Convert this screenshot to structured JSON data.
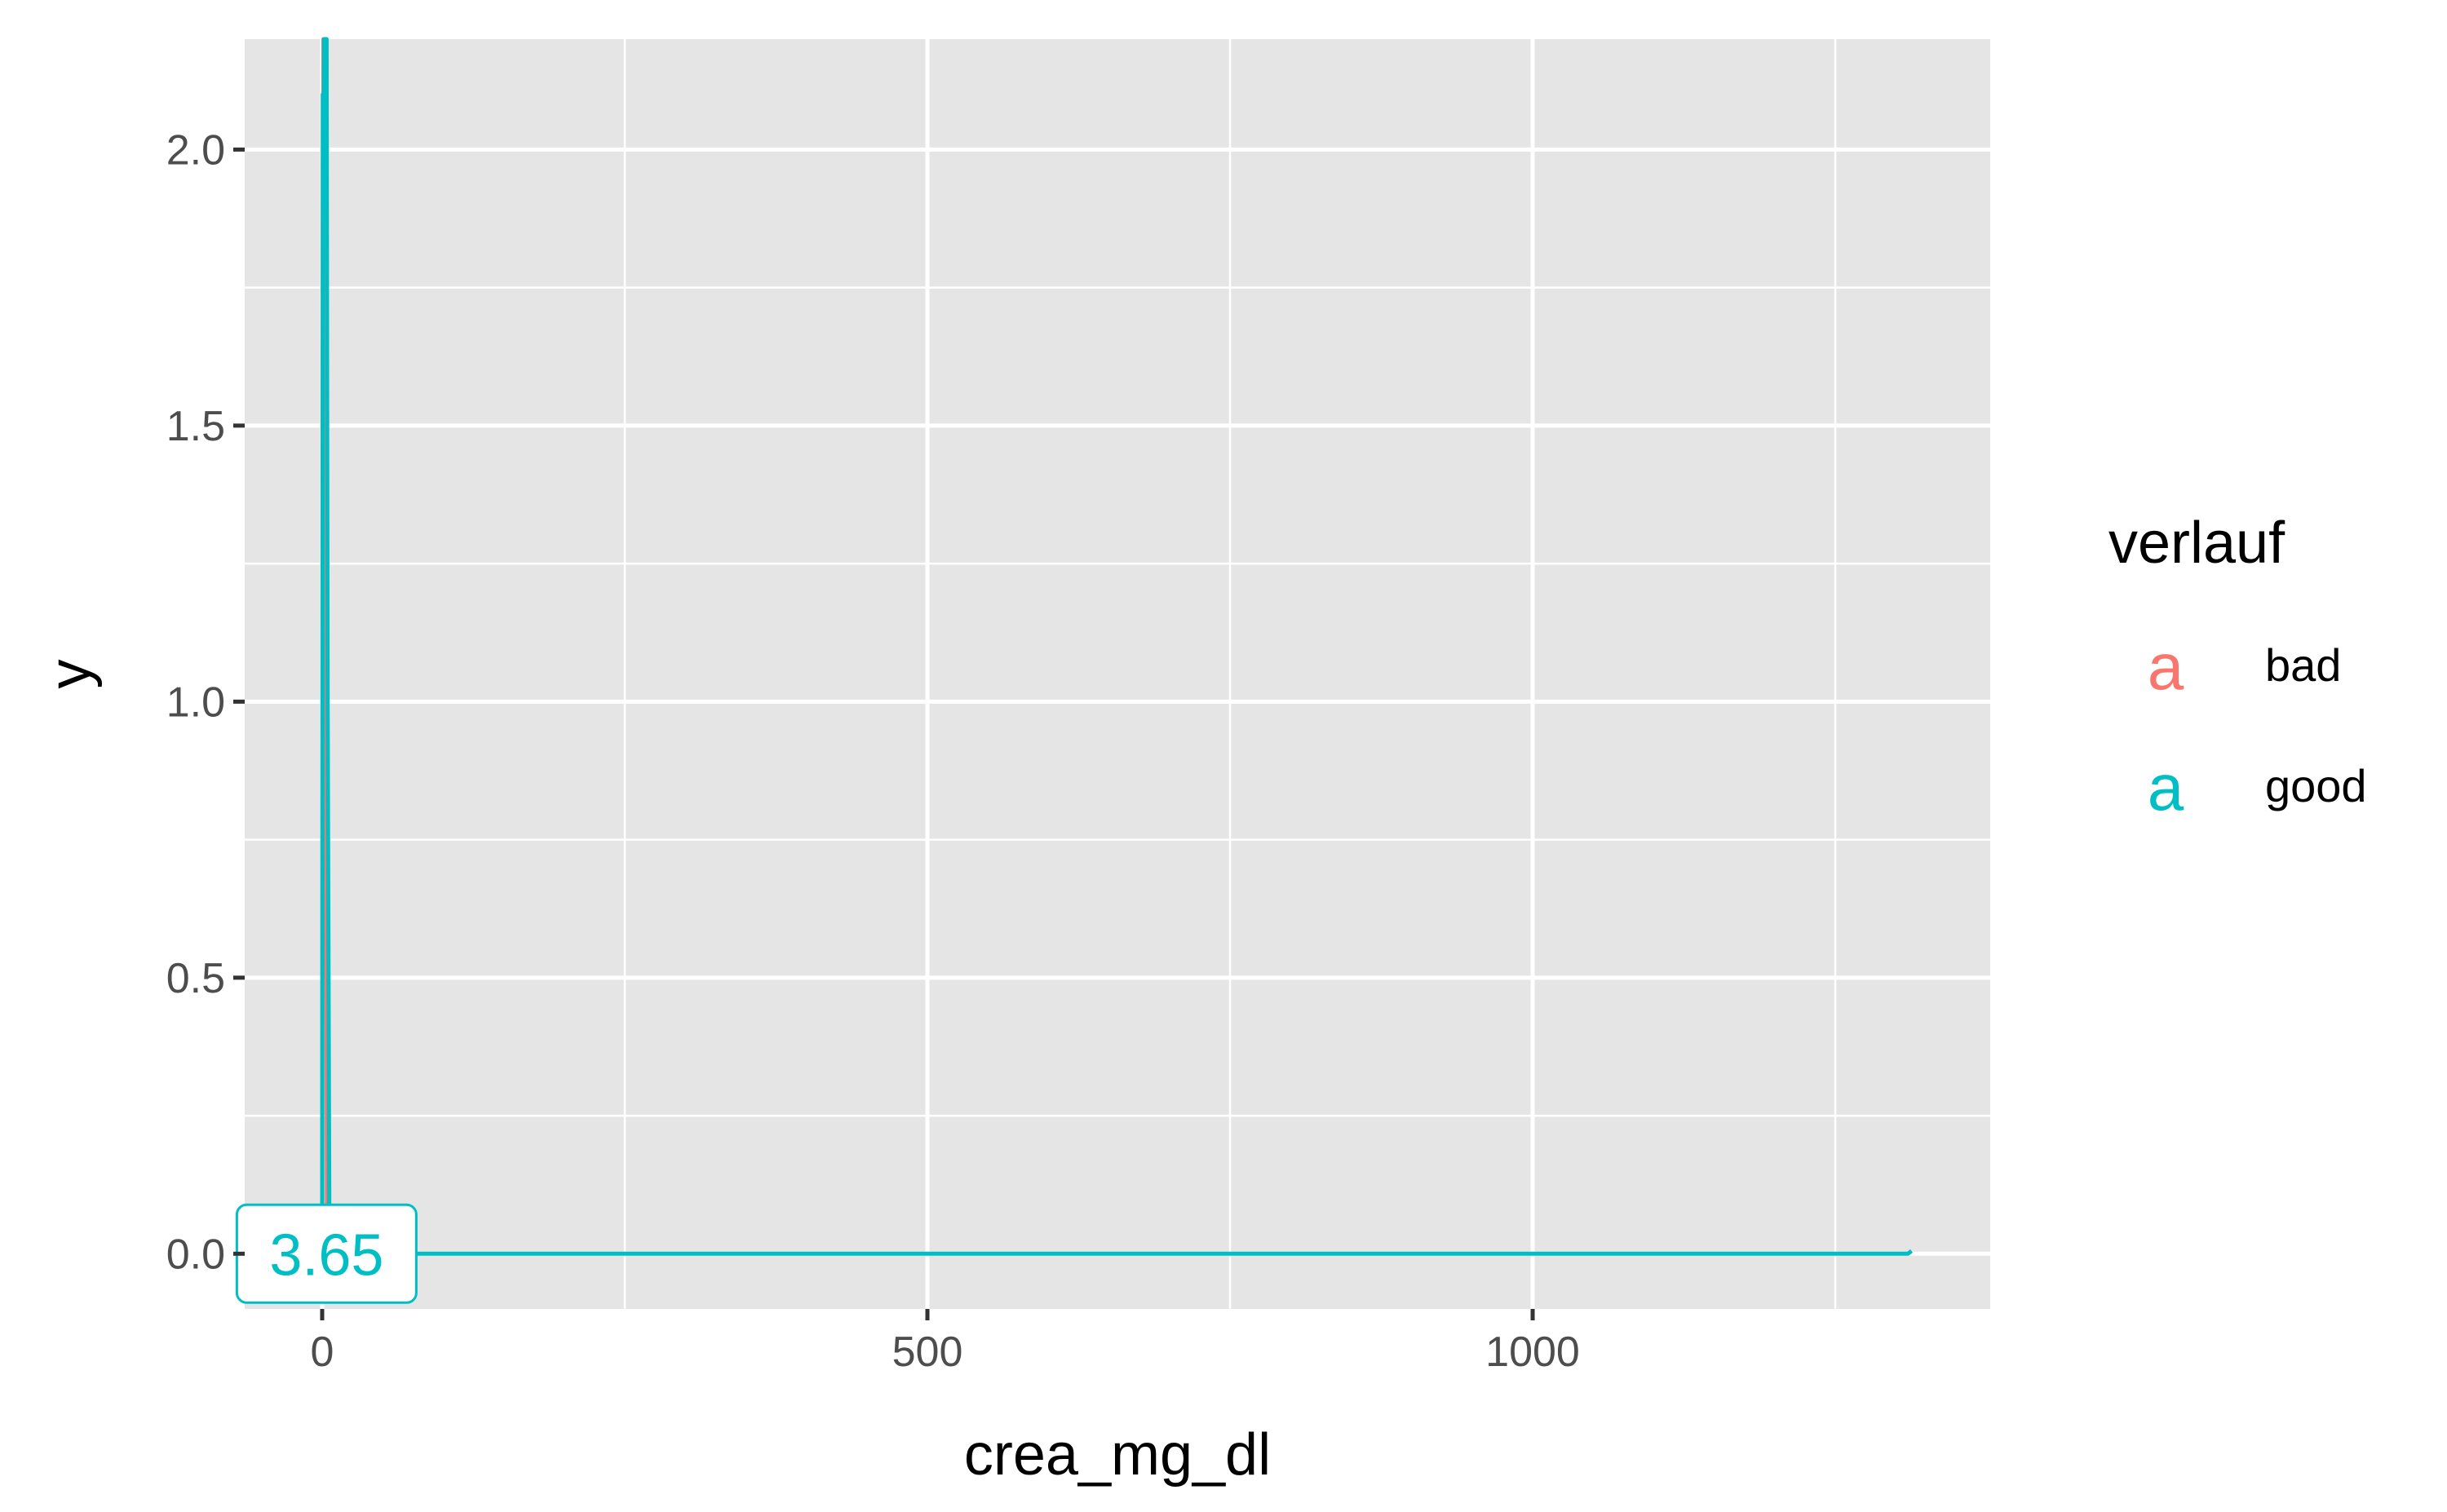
{
  "chart_data": {
    "type": "line",
    "title": "",
    "xlabel": "crea_mg_dl",
    "ylabel": "y",
    "xlim": [
      -64,
      1378
    ],
    "ylim": [
      -0.1,
      2.2
    ],
    "x_ticks": [
      0,
      500,
      1000
    ],
    "x_tick_labels": [
      "0",
      "500",
      "1000"
    ],
    "x_minor_ticks": [
      250,
      750,
      1250
    ],
    "y_ticks": [
      0.0,
      0.5,
      1.0,
      1.5,
      2.0
    ],
    "y_tick_labels": [
      "0.0",
      "0.5",
      "1.0",
      "1.5",
      "2.0"
    ],
    "y_minor_ticks": [
      0.25,
      0.75,
      1.25,
      1.75
    ],
    "grid": true,
    "panel_background": "#e5e5e5",
    "legend": {
      "title": "verlauf",
      "position": "right",
      "key_glyph": "a",
      "entries": [
        "bad",
        "good"
      ]
    },
    "series": [
      {
        "name": "bad",
        "color": "#F8766D",
        "x": [
          0.0,
          0.5,
          1.0,
          1.5,
          2.0,
          3.0,
          4.0,
          6.0,
          10.0
        ],
        "y": [
          0.0,
          1.33,
          2.2,
          2.2,
          2.2,
          1.2,
          0.05,
          0.0,
          0.0
        ]
      },
      {
        "name": "good",
        "color": "#00BFC4",
        "x": [
          0.0,
          0.5,
          1.0,
          1.5,
          2.5,
          3.65,
          4.5,
          6.0,
          10.0,
          1310.0,
          1313.0
        ],
        "y": [
          0.0,
          2.1,
          1.9,
          2.2,
          2.2,
          2.2,
          1.0,
          0.0,
          0.0,
          0.0,
          0.005
        ]
      }
    ],
    "annotation": {
      "text": "3.65",
      "x": 3.65,
      "y": 0.0,
      "color": "#00BFC4"
    }
  }
}
